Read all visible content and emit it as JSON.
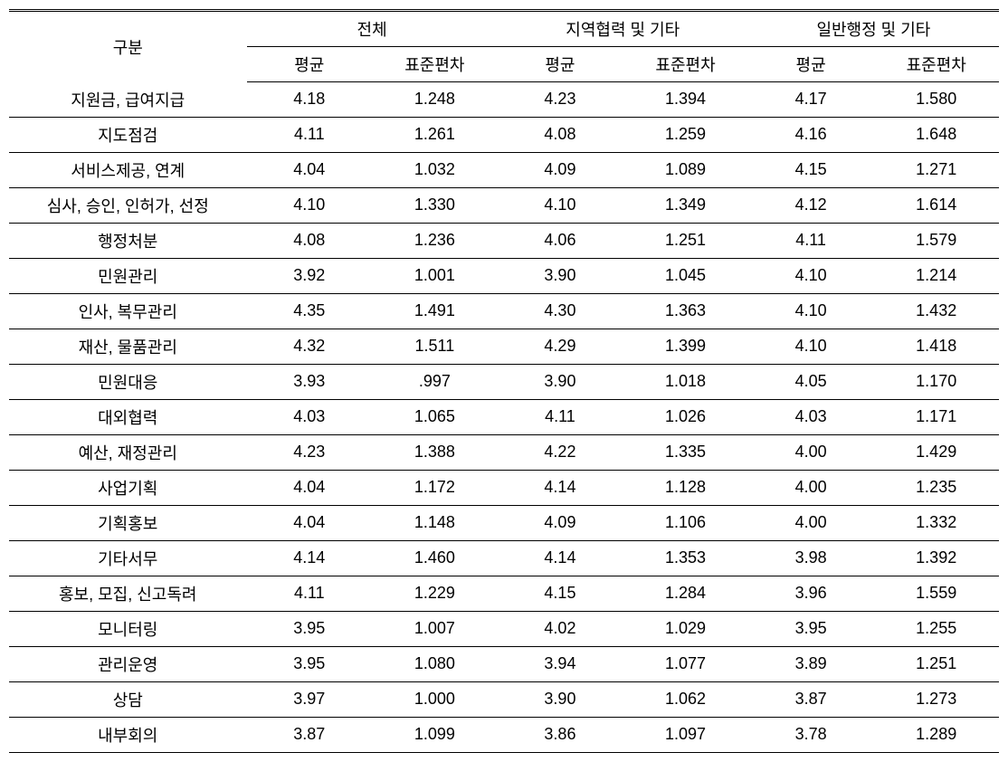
{
  "table": {
    "type": "table",
    "background_color": "#ffffff",
    "border_color": "#000000",
    "text_color": "#000000",
    "font_size": 18,
    "header_row1": {
      "label": "구분",
      "groups": [
        "전체",
        "지역협력 및 기타",
        "일반행정 및 기타"
      ]
    },
    "header_row2": {
      "subheaders": [
        "평균",
        "표준편차",
        "평균",
        "표준편차",
        "평균",
        "표준편차"
      ]
    },
    "rows": [
      {
        "label": "지원금, 급여지급",
        "values": [
          "4.18",
          "1.248",
          "4.23",
          "1.394",
          "4.17",
          "1.580"
        ]
      },
      {
        "label": "지도점검",
        "values": [
          "4.11",
          "1.261",
          "4.08",
          "1.259",
          "4.16",
          "1.648"
        ]
      },
      {
        "label": "서비스제공, 연계",
        "values": [
          "4.04",
          "1.032",
          "4.09",
          "1.089",
          "4.15",
          "1.271"
        ]
      },
      {
        "label": "심사, 승인,  인허가, 선정",
        "values": [
          "4.10",
          "1.330",
          "4.10",
          "1.349",
          "4.12",
          "1.614"
        ]
      },
      {
        "label": "행정처분",
        "values": [
          "4.08",
          "1.236",
          "4.06",
          "1.251",
          "4.11",
          "1.579"
        ]
      },
      {
        "label": "민원관리",
        "values": [
          "3.92",
          "1.001",
          "3.90",
          "1.045",
          "4.10",
          "1.214"
        ]
      },
      {
        "label": "인사, 복무관리",
        "values": [
          "4.35",
          "1.491",
          "4.30",
          "1.363",
          "4.10",
          "1.432"
        ]
      },
      {
        "label": "재산, 물품관리",
        "values": [
          "4.32",
          "1.511",
          "4.29",
          "1.399",
          "4.10",
          "1.418"
        ]
      },
      {
        "label": "민원대응",
        "values": [
          "3.93",
          ".997",
          "3.90",
          "1.018",
          "4.05",
          "1.170"
        ]
      },
      {
        "label": "대외협력",
        "values": [
          "4.03",
          "1.065",
          "4.11",
          "1.026",
          "4.03",
          "1.171"
        ]
      },
      {
        "label": "예산, 재정관리",
        "values": [
          "4.23",
          "1.388",
          "4.22",
          "1.335",
          "4.00",
          "1.429"
        ]
      },
      {
        "label": "사업기획",
        "values": [
          "4.04",
          "1.172",
          "4.14",
          "1.128",
          "4.00",
          "1.235"
        ]
      },
      {
        "label": "기획홍보",
        "values": [
          "4.04",
          "1.148",
          "4.09",
          "1.106",
          "4.00",
          "1.332"
        ]
      },
      {
        "label": "기타서무",
        "values": [
          "4.14",
          "1.460",
          "4.14",
          "1.353",
          "3.98",
          "1.392"
        ]
      },
      {
        "label": "홍보, 모집,  신고독려",
        "values": [
          "4.11",
          "1.229",
          "4.15",
          "1.284",
          "3.96",
          "1.559"
        ]
      },
      {
        "label": "모니터링",
        "values": [
          "3.95",
          "1.007",
          "4.02",
          "1.029",
          "3.95",
          "1.255"
        ]
      },
      {
        "label": "관리운영",
        "values": [
          "3.95",
          "1.080",
          "3.94",
          "1.077",
          "3.89",
          "1.251"
        ]
      },
      {
        "label": "상담",
        "values": [
          "3.97",
          "1.000",
          "3.90",
          "1.062",
          "3.87",
          "1.273"
        ]
      },
      {
        "label": "내부회의",
        "values": [
          "3.87",
          "1.099",
          "3.86",
          "1.097",
          "3.78",
          "1.289"
        ]
      }
    ]
  }
}
